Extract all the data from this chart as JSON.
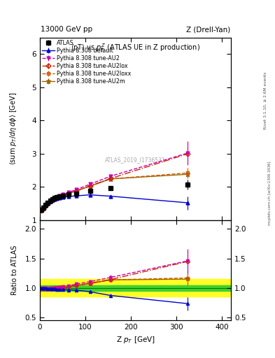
{
  "title_left": "13000 GeV pp",
  "title_right": "Z (Drell-Yan)",
  "plot_title": "<pT> vs $p_T^Z$ (ATLAS UE in Z production)",
  "ylabel_main": "$\\langle$sum $p_T/d\\eta\\, d\\phi\\rangle$ [GeV]",
  "ylabel_ratio": "Ratio to ATLAS",
  "xlabel": "Z $p_T$ [GeV]",
  "right_label": "Rivet 3.1.10, ≥ 2.6M events",
  "arxiv_label": "mcplots.cern.ch [arXiv:1306.3436]",
  "watermark": "ATLAS_2019_I1736531",
  "atlas_x": [
    2.5,
    7.5,
    12.5,
    17.5,
    22.5,
    27.5,
    32.5,
    37.5,
    42.5,
    50,
    62.5,
    80,
    110,
    155,
    325
  ],
  "atlas_y": [
    1.3,
    1.38,
    1.45,
    1.53,
    1.58,
    1.63,
    1.66,
    1.69,
    1.71,
    1.74,
    1.77,
    1.8,
    1.88,
    1.97,
    2.07
  ],
  "atlas_yerr": [
    0.02,
    0.02,
    0.02,
    0.02,
    0.02,
    0.02,
    0.02,
    0.02,
    0.02,
    0.02,
    0.03,
    0.03,
    0.04,
    0.05,
    0.15
  ],
  "default_x": [
    2.5,
    7.5,
    12.5,
    17.5,
    22.5,
    27.5,
    32.5,
    37.5,
    42.5,
    50,
    62.5,
    80,
    110,
    155,
    325
  ],
  "default_y": [
    1.3,
    1.38,
    1.44,
    1.51,
    1.56,
    1.6,
    1.63,
    1.65,
    1.67,
    1.69,
    1.71,
    1.73,
    1.76,
    1.72,
    1.52
  ],
  "default_yerr": [
    0.01,
    0.01,
    0.01,
    0.01,
    0.01,
    0.01,
    0.01,
    0.01,
    0.01,
    0.01,
    0.01,
    0.02,
    0.02,
    0.03,
    0.2
  ],
  "au2_x": [
    2.5,
    7.5,
    12.5,
    17.5,
    22.5,
    27.5,
    32.5,
    37.5,
    42.5,
    50,
    62.5,
    80,
    110,
    155,
    325
  ],
  "au2_y": [
    1.28,
    1.37,
    1.44,
    1.51,
    1.57,
    1.62,
    1.66,
    1.69,
    1.73,
    1.77,
    1.83,
    1.92,
    2.08,
    2.32,
    3.02
  ],
  "au2_yerr": [
    0.01,
    0.01,
    0.01,
    0.01,
    0.01,
    0.01,
    0.01,
    0.01,
    0.01,
    0.01,
    0.02,
    0.02,
    0.03,
    0.05,
    0.35
  ],
  "au2lox_x": [
    2.5,
    7.5,
    12.5,
    17.5,
    22.5,
    27.5,
    32.5,
    37.5,
    42.5,
    50,
    62.5,
    80,
    110,
    155,
    325
  ],
  "au2lox_y": [
    1.28,
    1.36,
    1.43,
    1.5,
    1.56,
    1.61,
    1.65,
    1.68,
    1.71,
    1.75,
    1.8,
    1.88,
    2.03,
    2.25,
    3.0
  ],
  "au2lox_yerr": [
    0.01,
    0.01,
    0.01,
    0.01,
    0.01,
    0.01,
    0.01,
    0.01,
    0.01,
    0.01,
    0.02,
    0.02,
    0.03,
    0.05,
    0.35
  ],
  "au2loxx_x": [
    2.5,
    7.5,
    12.5,
    17.5,
    22.5,
    27.5,
    32.5,
    37.5,
    42.5,
    50,
    62.5,
    80,
    110,
    155,
    325
  ],
  "au2loxx_y": [
    1.28,
    1.36,
    1.43,
    1.5,
    1.56,
    1.61,
    1.65,
    1.68,
    1.72,
    1.75,
    1.8,
    1.88,
    2.02,
    2.24,
    2.42
  ],
  "au2loxx_yerr": [
    0.01,
    0.01,
    0.01,
    0.01,
    0.01,
    0.01,
    0.01,
    0.01,
    0.01,
    0.01,
    0.02,
    0.02,
    0.03,
    0.05,
    0.15
  ],
  "au2m_x": [
    2.5,
    7.5,
    12.5,
    17.5,
    22.5,
    27.5,
    32.5,
    37.5,
    42.5,
    50,
    62.5,
    80,
    110,
    155,
    325
  ],
  "au2m_y": [
    1.28,
    1.36,
    1.43,
    1.5,
    1.56,
    1.61,
    1.65,
    1.68,
    1.72,
    1.75,
    1.8,
    1.88,
    2.02,
    2.24,
    2.38
  ],
  "au2m_yerr": [
    0.01,
    0.01,
    0.01,
    0.01,
    0.01,
    0.01,
    0.01,
    0.01,
    0.01,
    0.01,
    0.02,
    0.02,
    0.03,
    0.05,
    0.12
  ],
  "xlim": [
    0,
    420
  ],
  "ylim_main": [
    1.0,
    6.5
  ],
  "yticks_main": [
    1,
    2,
    3,
    4,
    5,
    6
  ],
  "ylim_ratio": [
    0.45,
    2.15
  ],
  "yticks_ratio": [
    0.5,
    1.0,
    1.5,
    2.0
  ],
  "color_atlas": "#000000",
  "color_default": "#0000cc",
  "color_au2": "#cc00aa",
  "color_au2lox": "#cc2200",
  "color_au2loxx": "#cc5500",
  "color_au2m": "#996600",
  "band_yellow": 0.15,
  "band_green": 0.05
}
